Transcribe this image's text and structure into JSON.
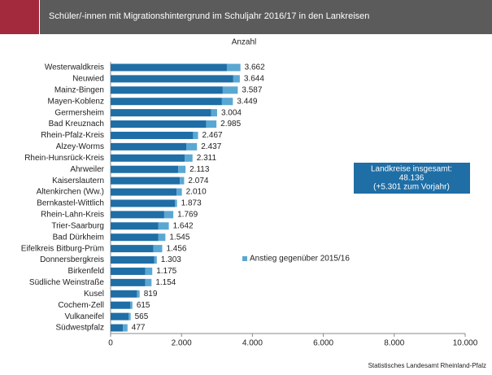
{
  "chart_data": {
    "type": "stacked-barh",
    "title": "Schüler/-innen mit Migrationshintergrund im Schuljahr 2016/17 in den Lankreisen",
    "axis_title": "Anzahl",
    "categories": [
      "Westerwaldkreis",
      "Neuwied",
      "Mainz-Bingen",
      "Mayen-Koblenz",
      "Germersheim",
      "Bad Kreuznach",
      "Rhein-Pfalz-Kreis",
      "Alzey-Worms",
      "Rhein-Hunsrück-Kreis",
      "Ahrweiler",
      "Kaiserslautern",
      "Altenkirchen (Ww.)",
      "Bernkastel-Wittlich",
      "Rhein-Lahn-Kreis",
      "Trier-Saarburg",
      "Bad Dürkheim",
      "Eifelkreis Bitburg-Prüm",
      "Donnersbergkreis",
      "Birkenfeld",
      "Südliche Weinstraße",
      "Kusel",
      "Cochem-Zell",
      "Vulkaneifel",
      "Südwestpfalz"
    ],
    "series": [
      {
        "color": "#1f6ea6",
        "values": [
          3279,
          3460,
          3163,
          3140,
          2837,
          2698,
          2326,
          2140,
          2093,
          1907,
          1953,
          1860,
          1814,
          1512,
          1349,
          1349,
          1209,
          1233,
          977,
          977,
          744,
          558,
          512,
          349
        ]
      },
      {
        "name": "Anstieg gegenüber 2015/16",
        "color": "#5aa7d3",
        "values": [
          383,
          184,
          424,
          309,
          167,
          287,
          141,
          297,
          218,
          206,
          121,
          150,
          59,
          257,
          293,
          196,
          247,
          70,
          198,
          177,
          75,
          57,
          53,
          128
        ]
      }
    ],
    "totals": [
      3662,
      3644,
      3587,
      3449,
      3004,
      2985,
      2467,
      2437,
      2311,
      2113,
      2074,
      2010,
      1873,
      1769,
      1642,
      1545,
      1456,
      1303,
      1175,
      1154,
      819,
      615,
      565,
      477
    ],
    "value_labels": [
      "3.662",
      "3.644",
      "3.587",
      "3.449",
      "3.004",
      "2.985",
      "2.467",
      "2.437",
      "2.311",
      "2.113",
      "2.074",
      "2.010",
      "1.873",
      "1.769",
      "1.642",
      "1.545",
      "1.456",
      "1.303",
      "1.175",
      "1.154",
      "819",
      "615",
      "565",
      "477"
    ],
    "xlim": [
      0,
      10000
    ],
    "xticks": [
      0,
      {
        "value": 2000,
        "label": "2.000"
      },
      {
        "value": 4000,
        "label": "4.000"
      },
      {
        "value": 6000,
        "label": "6.000"
      },
      {
        "value": 8000,
        "label": "8.000"
      },
      {
        "value": 10000,
        "label": "10.000"
      }
    ],
    "annotation": [
      "Landkreise insgesamt:",
      "48.136",
      "(+5.301 zum Vorjahr)"
    ],
    "source": "Statistisches Landesamt Rheinland-Pfalz"
  }
}
